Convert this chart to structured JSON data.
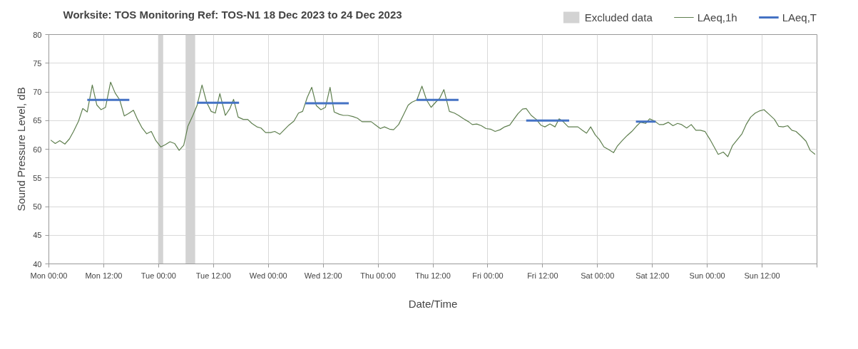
{
  "chart_data": {
    "type": "line",
    "title": "Worksite: TOS   Monitoring Ref: TOS-N1     18 Dec 2023 to 24 Dec 2023",
    "xlabel": "Date/Time",
    "ylabel": "Sound Pressure Level, dB",
    "xlim": [
      "2023-12-18T00:00",
      "2023-12-25T00:00"
    ],
    "ylim": [
      40,
      80
    ],
    "xticks": [
      {
        "value": "2023-12-18T00:00",
        "label": "Mon 00:00"
      },
      {
        "value": "2023-12-18T12:00",
        "label": "Mon 12:00"
      },
      {
        "value": "2023-12-19T00:00",
        "label": "Tue 00:00"
      },
      {
        "value": "2023-12-19T12:00",
        "label": "Tue 12:00"
      },
      {
        "value": "2023-12-20T00:00",
        "label": "Wed 00:00"
      },
      {
        "value": "2023-12-20T12:00",
        "label": "Wed 12:00"
      },
      {
        "value": "2023-12-21T00:00",
        "label": "Thu 00:00"
      },
      {
        "value": "2023-12-21T12:00",
        "label": "Thu 12:00"
      },
      {
        "value": "2023-12-22T00:00",
        "label": "Fri 00:00"
      },
      {
        "value": "2023-12-22T12:00",
        "label": "Fri 12:00"
      },
      {
        "value": "2023-12-23T00:00",
        "label": "Sat 00:00"
      },
      {
        "value": "2023-12-23T12:00",
        "label": "Sat 12:00"
      },
      {
        "value": "2023-12-24T00:00",
        "label": "Sun 00:00"
      },
      {
        "value": "2023-12-24T12:00",
        "label": "Sun 12:00"
      },
      {
        "value": "2023-12-25T00:00",
        "label": null
      }
    ],
    "yticks": [
      40,
      45,
      50,
      55,
      60,
      65,
      70,
      75,
      80
    ],
    "grid": true,
    "legend": "top right",
    "bands": [
      {
        "axis": "x",
        "from": "2023-12-18T23:54",
        "to": "2023-12-19T01:00",
        "label": "Excluded data",
        "color": "#d3d3d3"
      },
      {
        "axis": "x",
        "from": "2023-12-19T05:54",
        "to": "2023-12-19T08:00",
        "color": "#d3d3d3"
      }
    ],
    "series": [
      {
        "name": "LAeq,1h",
        "color": "#5f7f4f",
        "x": [
          "2023-12-18T00:24",
          "2023-12-18T01:24",
          "2023-12-18T02:24",
          "2023-12-18T03:30",
          "2023-12-18T04:30",
          "2023-12-18T05:24",
          "2023-12-18T06:30",
          "2023-12-18T07:24",
          "2023-12-18T08:24",
          "2023-12-18T09:30",
          "2023-12-18T10:30",
          "2023-12-18T11:24",
          "2023-12-18T12:24",
          "2023-12-18T13:30",
          "2023-12-18T14:30",
          "2023-12-18T15:30",
          "2023-12-18T16:30",
          "2023-12-18T17:24",
          "2023-12-18T18:30",
          "2023-12-18T19:24",
          "2023-12-18T20:24",
          "2023-12-18T21:24",
          "2023-12-18T22:24",
          "2023-12-18T23:24",
          "2023-12-19T00:30",
          "2023-12-19T01:30",
          "2023-12-19T02:30",
          "2023-12-19T03:30",
          "2023-12-19T04:30",
          "2023-12-19T05:30",
          "2023-12-19T06:24",
          "2023-12-19T07:30",
          "2023-12-19T08:24",
          "2023-12-19T09:30",
          "2023-12-19T10:30",
          "2023-12-19T11:30",
          "2023-12-19T12:24",
          "2023-12-19T13:24",
          "2023-12-19T14:36",
          "2023-12-19T15:36",
          "2023-12-19T16:24",
          "2023-12-19T17:24",
          "2023-12-19T18:30",
          "2023-12-19T19:30",
          "2023-12-19T20:24",
          "2023-12-19T21:30",
          "2023-12-19T22:24",
          "2023-12-19T23:24",
          "2023-12-20T00:30",
          "2023-12-20T01:24",
          "2023-12-20T02:30",
          "2023-12-20T04:30",
          "2023-12-20T05:36",
          "2023-12-20T06:36",
          "2023-12-20T07:30",
          "2023-12-20T08:30",
          "2023-12-20T09:30",
          "2023-12-20T10:30",
          "2023-12-20T11:30",
          "2023-12-20T12:30",
          "2023-12-20T13:30",
          "2023-12-20T14:24",
          "2023-12-20T15:30",
          "2023-12-20T16:24",
          "2023-12-20T17:24",
          "2023-12-20T18:30",
          "2023-12-20T19:30",
          "2023-12-20T20:30",
          "2023-12-20T21:30",
          "2023-12-20T22:30",
          "2023-12-20T23:30",
          "2023-12-21T00:30",
          "2023-12-21T01:24",
          "2023-12-21T02:30",
          "2023-12-21T03:24",
          "2023-12-21T04:30",
          "2023-12-21T05:30",
          "2023-12-21T06:36",
          "2023-12-21T07:24",
          "2023-12-21T08:30",
          "2023-12-21T09:36",
          "2023-12-21T10:36",
          "2023-12-21T11:36",
          "2023-12-21T12:36",
          "2023-12-21T13:30",
          "2023-12-21T14:24",
          "2023-12-21T15:36",
          "2023-12-21T16:42",
          "2023-12-21T17:36",
          "2023-12-21T18:42",
          "2023-12-21T19:48",
          "2023-12-21T20:36",
          "2023-12-21T21:36",
          "2023-12-21T22:36",
          "2023-12-21T23:36",
          "2023-12-22T00:36",
          "2023-12-22T01:36",
          "2023-12-22T02:42",
          "2023-12-22T03:42",
          "2023-12-22T04:48",
          "2023-12-22T05:36",
          "2023-12-22T06:36",
          "2023-12-22T07:36",
          "2023-12-22T08:24",
          "2023-12-22T09:30",
          "2023-12-22T10:36",
          "2023-12-22T11:36",
          "2023-12-22T12:30",
          "2023-12-22T13:36",
          "2023-12-22T14:42",
          "2023-12-22T15:36",
          "2023-12-22T16:30",
          "2023-12-22T17:36",
          "2023-12-22T18:42",
          "2023-12-22T19:42",
          "2023-12-22T20:42",
          "2023-12-22T21:36",
          "2023-12-22T22:30",
          "2023-12-22T23:30",
          "2023-12-23T00:24",
          "2023-12-23T01:24",
          "2023-12-23T02:30",
          "2023-12-23T03:30",
          "2023-12-23T04:18",
          "2023-12-23T05:24",
          "2023-12-23T06:30",
          "2023-12-23T07:30",
          "2023-12-23T08:30",
          "2023-12-23T09:24",
          "2023-12-23T10:30",
          "2023-12-23T11:24",
          "2023-12-23T12:30",
          "2023-12-23T13:30",
          "2023-12-23T14:24",
          "2023-12-23T15:30",
          "2023-12-23T16:30",
          "2023-12-23T17:30",
          "2023-12-23T18:24",
          "2023-12-23T19:30",
          "2023-12-23T20:30",
          "2023-12-23T21:30",
          "2023-12-23T22:30",
          "2023-12-23T23:30",
          "2023-12-24T00:36",
          "2023-12-24T01:30",
          "2023-12-24T02:24",
          "2023-12-24T03:30",
          "2023-12-24T04:30",
          "2023-12-24T05:30",
          "2023-12-24T06:36",
          "2023-12-24T07:36",
          "2023-12-24T08:30",
          "2023-12-24T09:30",
          "2023-12-24T10:30",
          "2023-12-24T11:30",
          "2023-12-24T12:24",
          "2023-12-24T13:30",
          "2023-12-24T14:42",
          "2023-12-24T15:36",
          "2023-12-24T16:36",
          "2023-12-24T17:36",
          "2023-12-24T18:30",
          "2023-12-24T19:24",
          "2023-12-24T20:30",
          "2023-12-24T21:36",
          "2023-12-24T22:30",
          "2023-12-24T23:36"
        ],
        "values": [
          61.6,
          61.0,
          61.5,
          60.9,
          61.8,
          63.1,
          64.9,
          67.1,
          66.5,
          71.2,
          67.7,
          66.9,
          67.3,
          71.7,
          69.8,
          68.6,
          65.8,
          66.2,
          66.8,
          65.2,
          63.7,
          62.7,
          63.1,
          61.5,
          60.4,
          60.8,
          61.3,
          61.0,
          59.8,
          60.7,
          64.0,
          65.9,
          67.6,
          71.2,
          68.2,
          66.6,
          66.3,
          69.7,
          65.9,
          67.1,
          68.7,
          65.6,
          65.2,
          65.2,
          64.5,
          63.9,
          63.7,
          62.9,
          62.9,
          63.1,
          62.6,
          64.2,
          64.9,
          66.3,
          66.6,
          69.0,
          70.8,
          67.6,
          66.9,
          67.3,
          70.8,
          66.5,
          66.1,
          65.9,
          65.9,
          65.7,
          65.4,
          64.8,
          64.8,
          64.8,
          64.2,
          63.6,
          63.9,
          63.5,
          63.4,
          64.3,
          65.9,
          67.7,
          68.2,
          68.6,
          71.0,
          68.6,
          67.3,
          68.2,
          68.9,
          70.4,
          66.6,
          66.3,
          65.9,
          65.3,
          64.8,
          64.3,
          64.4,
          64.1,
          63.6,
          63.5,
          63.1,
          63.4,
          63.9,
          64.2,
          65.1,
          66.2,
          67.0,
          67.1,
          65.9,
          65.2,
          64.2,
          63.9,
          64.4,
          63.9,
          65.3,
          64.8,
          63.9,
          63.9,
          63.9,
          63.3,
          62.8,
          63.9,
          62.5,
          61.7,
          60.4,
          59.9,
          59.4,
          60.5,
          61.5,
          62.4,
          63.1,
          64.0,
          64.7,
          64.5,
          65.3,
          64.9,
          64.3,
          64.3,
          64.7,
          64.1,
          64.5,
          64.3,
          63.7,
          64.3,
          63.3,
          63.3,
          63.1,
          61.7,
          60.4,
          59.1,
          59.5,
          58.7,
          60.6,
          61.7,
          62.7,
          64.3,
          65.6,
          66.3,
          66.7,
          66.9,
          66.1,
          65.2,
          64.0,
          63.9,
          64.1,
          63.3,
          63.1,
          62.3,
          61.4,
          59.8,
          59.1
        ]
      },
      {
        "name": "LAeq,T",
        "color": "#4472c4",
        "x": [
          "2023-12-18T08:24",
          "2023-12-18T17:36",
          "2023-12-18T17:42",
          "2023-12-19T08:24",
          "2023-12-19T17:36",
          "2023-12-19T17:42",
          "2023-12-20T08:06",
          "2023-12-20T17:36",
          "2023-12-20T17:42",
          "2023-12-21T08:24",
          "2023-12-21T17:36",
          "2023-12-21T17:42",
          "2023-12-22T08:24",
          "2023-12-22T17:48",
          "2023-12-22T17:54",
          "2023-12-23T08:24",
          "2023-12-23T12:42"
        ],
        "values": [
          68.6,
          68.6,
          null,
          68.1,
          68.1,
          null,
          68.0,
          68.0,
          null,
          68.6,
          68.6,
          null,
          65.0,
          65.0,
          null,
          64.8,
          64.8
        ]
      }
    ]
  }
}
